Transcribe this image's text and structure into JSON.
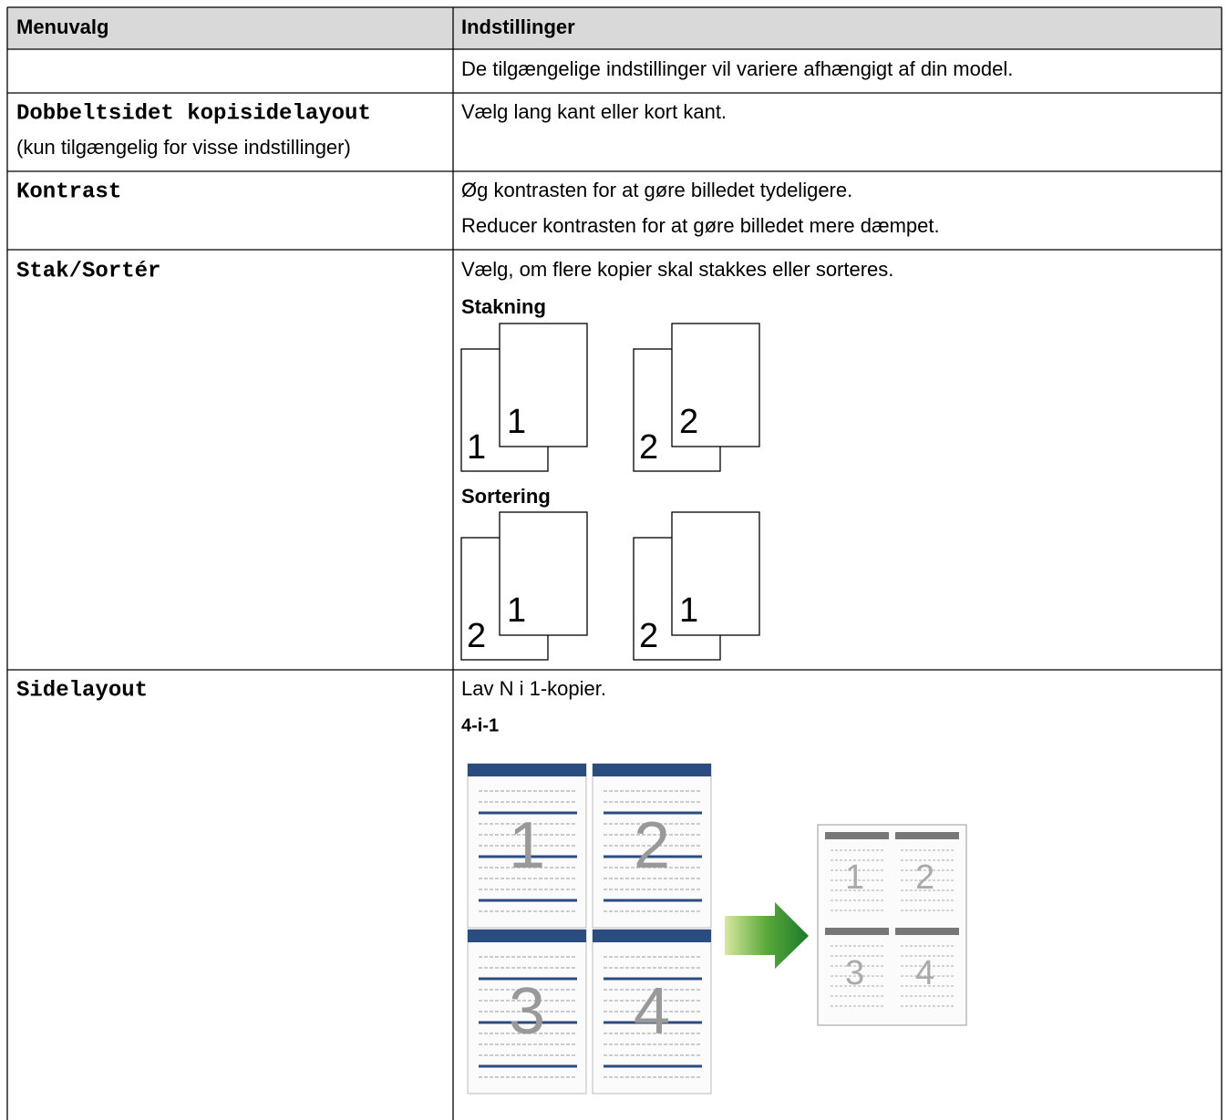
{
  "table": {
    "header": [
      "Menuvalg",
      "Indstillinger"
    ],
    "rows": [
      {
        "settings": [
          "De tilgængelige indstillinger vil variere afhængigt af din model."
        ]
      },
      {
        "menu": "Dobbeltsidet kopisidelayout",
        "menu_note": "(kun tilgængelig for visse indstillinger)",
        "settings": [
          "Vælg lang kant eller kort kant."
        ]
      },
      {
        "menu": "Kontrast",
        "settings": [
          "Øg kontrasten for at gøre billedet tydeligere.",
          "Reducer kontrasten for at gøre billedet mere dæmpet."
        ]
      },
      {
        "menu": "Stak/Sortér",
        "settings": [
          "Vælg, om flere kopier skal stakkes eller sorteres."
        ],
        "figures": [
          {
            "title": "Stakning",
            "pairs": [
              [
                "1",
                "1"
              ],
              [
                "2",
                "2"
              ]
            ]
          },
          {
            "title": "Sortering",
            "pairs": [
              [
                "2",
                "1"
              ],
              [
                "2",
                "1"
              ]
            ]
          }
        ]
      },
      {
        "menu": "Sidelayout",
        "settings": [
          "Lav N i 1-kopier."
        ],
        "figures": [
          {
            "title": "4-i-1",
            "pages": [
              "1",
              "2",
              "3",
              "4"
            ]
          }
        ]
      }
    ]
  }
}
